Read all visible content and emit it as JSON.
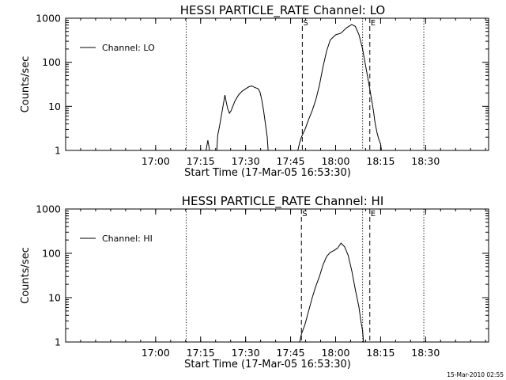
{
  "footer": {
    "timestamp": "15-Mar-2010 02:55"
  },
  "chart_data": [
    {
      "type": "line",
      "title": "HESSI PARTICLE_RATE Channel: LO",
      "xlabel": "Start Time (17-Mar-05 16:53:30)",
      "ylabel": "Counts/sec",
      "xlim": [
        16.5,
        18.85
      ],
      "ylim": [
        1,
        1000
      ],
      "yscale": "log",
      "x_ticks": [
        17.0,
        17.25,
        17.5,
        17.75,
        18.0,
        18.25,
        18.5
      ],
      "x_tick_labels": [
        "17:00",
        "17:15",
        "17:30",
        "17:45",
        "18:00",
        "18:15",
        "18:30"
      ],
      "y_ticks": [
        1,
        10,
        100,
        1000
      ],
      "y_tick_labels": [
        "1",
        "10",
        "100",
        "1000"
      ],
      "legend": {
        "placement": "top-left",
        "entries": [
          "Channel: LO"
        ]
      },
      "markers": [
        {
          "label": "S",
          "x": 17.815,
          "style": "dashed"
        },
        {
          "label": "E",
          "x": 18.19,
          "style": "dashed"
        }
      ],
      "vlines_dotted": [
        17.17,
        18.15,
        18.49
      ],
      "series": [
        {
          "name": "Channel: LO",
          "segments": [
            [
              [
                17.28,
                1
              ],
              [
                17.29,
                1.7
              ],
              [
                17.3,
                1
              ]
            ],
            [
              [
                17.34,
                1
              ],
              [
                17.345,
                2.2
              ],
              [
                17.355,
                3.5
              ],
              [
                17.37,
                8
              ],
              [
                17.385,
                18
              ],
              [
                17.39,
                14
              ],
              [
                17.4,
                9
              ],
              [
                17.41,
                7
              ],
              [
                17.42,
                8
              ],
              [
                17.44,
                13
              ],
              [
                17.46,
                18
              ],
              [
                17.48,
                22
              ],
              [
                17.5,
                25
              ],
              [
                17.52,
                28
              ],
              [
                17.535,
                29
              ],
              [
                17.55,
                27
              ],
              [
                17.57,
                25
              ],
              [
                17.58,
                21
              ],
              [
                17.59,
                14
              ],
              [
                17.6,
                8
              ],
              [
                17.61,
                4
              ],
              [
                17.62,
                2
              ],
              [
                17.625,
                1
              ]
            ],
            [
              [
                17.79,
                1
              ],
              [
                17.8,
                1.5
              ],
              [
                17.81,
                2
              ],
              [
                17.83,
                3
              ],
              [
                17.85,
                5
              ],
              [
                17.87,
                8
              ],
              [
                17.89,
                14
              ],
              [
                17.91,
                30
              ],
              [
                17.93,
                80
              ],
              [
                17.95,
                180
              ],
              [
                17.97,
                320
              ],
              [
                18.0,
                420
              ],
              [
                18.03,
                460
              ],
              [
                18.06,
                600
              ],
              [
                18.09,
                720
              ],
              [
                18.11,
                650
              ],
              [
                18.13,
                420
              ],
              [
                18.15,
                200
              ],
              [
                18.17,
                70
              ],
              [
                18.19,
                25
              ],
              [
                18.21,
                8
              ],
              [
                18.22,
                4
              ],
              [
                18.23,
                2.5
              ],
              [
                18.24,
                1.8
              ],
              [
                18.25,
                1.4
              ],
              [
                18.255,
                1
              ]
            ]
          ]
        }
      ]
    },
    {
      "type": "line",
      "title": "HESSI PARTICLE_RATE Channel: HI",
      "xlabel": "Start Time (17-Mar-05 16:53:30)",
      "ylabel": "Counts/sec",
      "xlim": [
        16.5,
        18.85
      ],
      "ylim": [
        1,
        1000
      ],
      "yscale": "log",
      "x_ticks": [
        17.0,
        17.25,
        17.5,
        17.75,
        18.0,
        18.25,
        18.5
      ],
      "x_tick_labels": [
        "17:00",
        "17:15",
        "17:30",
        "17:45",
        "18:00",
        "18:15",
        "18:30"
      ],
      "y_ticks": [
        1,
        10,
        100,
        1000
      ],
      "y_tick_labels": [
        "1",
        "10",
        "100",
        "1000"
      ],
      "legend": {
        "placement": "top-left",
        "entries": [
          "Channel: HI"
        ]
      },
      "markers": [
        {
          "label": "S",
          "x": 17.81,
          "style": "dashed"
        },
        {
          "label": "E",
          "x": 18.19,
          "style": "dashed"
        }
      ],
      "vlines_dotted": [
        17.17,
        18.15,
        18.49
      ],
      "series": [
        {
          "name": "Channel: HI",
          "segments": [
            [
              [
                17.8,
                1
              ],
              [
                17.81,
                1.5
              ],
              [
                17.83,
                2.5
              ],
              [
                17.85,
                5
              ],
              [
                17.87,
                10
              ],
              [
                17.89,
                18
              ],
              [
                17.91,
                30
              ],
              [
                17.93,
                55
              ],
              [
                17.95,
                85
              ],
              [
                17.97,
                105
              ],
              [
                17.99,
                115
              ],
              [
                18.01,
                130
              ],
              [
                18.03,
                170
              ],
              [
                18.05,
                140
              ],
              [
                18.07,
                90
              ],
              [
                18.09,
                40
              ],
              [
                18.11,
                15
              ],
              [
                18.13,
                6
              ],
              [
                18.14,
                3
              ],
              [
                18.15,
                1.8
              ],
              [
                18.155,
                1
              ]
            ]
          ]
        }
      ]
    }
  ]
}
